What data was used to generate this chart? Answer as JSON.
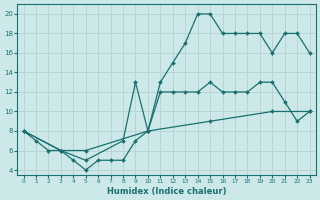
{
  "xlabel": "Humidex (Indice chaleur)",
  "bg_color": "#cce8e8",
  "grid_color": "#b8d4d4",
  "line_color": "#1a7070",
  "xlim": [
    -0.5,
    23.5
  ],
  "ylim": [
    3.5,
    21
  ],
  "xticks": [
    0,
    1,
    2,
    3,
    4,
    5,
    6,
    7,
    8,
    9,
    10,
    11,
    12,
    13,
    14,
    15,
    16,
    17,
    18,
    19,
    20,
    21,
    22,
    23
  ],
  "yticks": [
    4,
    6,
    8,
    10,
    12,
    14,
    16,
    18,
    20
  ],
  "line1_x": [
    0,
    1,
    2,
    3,
    4,
    5,
    6,
    7,
    8,
    9,
    10,
    11,
    12,
    13,
    14,
    15,
    16,
    17,
    18,
    19,
    20,
    21,
    22,
    23
  ],
  "line1_y": [
    8,
    7,
    6,
    6,
    5,
    4,
    5,
    5,
    5,
    7,
    8,
    13,
    15,
    17,
    20,
    20,
    18,
    18,
    18,
    18,
    16,
    18,
    18,
    16
  ],
  "line2_x": [
    0,
    3,
    5,
    8,
    9,
    10,
    11,
    12,
    13,
    14,
    15,
    16,
    17,
    18,
    19,
    20,
    21,
    22,
    23
  ],
  "line2_y": [
    8,
    6,
    5,
    7,
    13,
    8,
    12,
    12,
    12,
    12,
    13,
    12,
    12,
    12,
    13,
    13,
    11,
    9,
    10
  ],
  "line3_x": [
    0,
    3,
    5,
    10,
    15,
    20,
    23
  ],
  "line3_y": [
    8,
    6,
    6,
    8,
    9,
    10,
    10
  ]
}
